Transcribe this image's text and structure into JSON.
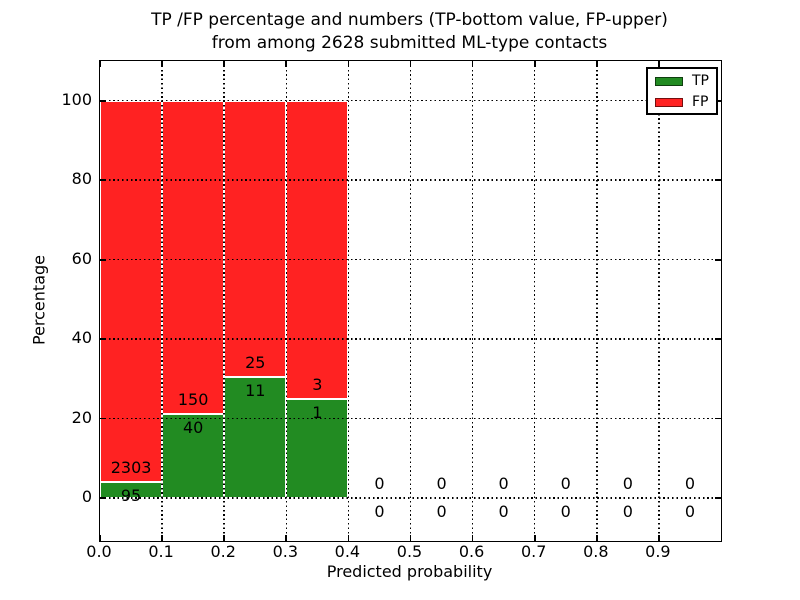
{
  "title": {
    "line1": "TP /FP percentage and numbers (TP-bottom value, FP-upper)",
    "line2": "from among 2628 submitted ML-type contacts"
  },
  "axes": {
    "xlabel": "Predicted probability",
    "ylabel": "Percentage",
    "x_tick_values": [
      0.0,
      0.1,
      0.2,
      0.3,
      0.4,
      0.5,
      0.6,
      0.7,
      0.8,
      0.9
    ],
    "x_tick_labels": [
      "0.0",
      "0.1",
      "0.2",
      "0.3",
      "0.4",
      "0.5",
      "0.6",
      "0.7",
      "0.8",
      "0.9"
    ],
    "y_tick_values": [
      0,
      20,
      40,
      60,
      80,
      100
    ],
    "y_tick_labels": [
      "0",
      "20",
      "40",
      "60",
      "80",
      "100"
    ]
  },
  "legend": {
    "items": [
      {
        "label": "TP",
        "color": "#228b22"
      },
      {
        "label": "FP",
        "color": "#ff2222"
      }
    ]
  },
  "chart_data": {
    "type": "bar",
    "stacked": true,
    "normalized": "each non-empty bin stacks to 100%",
    "title": "TP /FP percentage and numbers (TP-bottom value, FP-upper) from among 2628 submitted ML-type contacts",
    "xlabel": "Predicted probability",
    "ylabel": "Percentage",
    "total_contacts": 2628,
    "bin_width": 0.1,
    "bin_starts": [
      0.0,
      0.1,
      0.2,
      0.3,
      0.4,
      0.5,
      0.6,
      0.7,
      0.8,
      0.9
    ],
    "series": [
      {
        "name": "TP",
        "color": "#228b22",
        "counts": [
          95,
          40,
          11,
          1,
          0,
          0,
          0,
          0,
          0,
          0
        ],
        "pct_of_bin": [
          3.96,
          21.05,
          30.56,
          25.0,
          0,
          0,
          0,
          0,
          0,
          0
        ]
      },
      {
        "name": "FP",
        "color": "#ff2222",
        "counts": [
          2303,
          150,
          25,
          3,
          0,
          0,
          0,
          0,
          0,
          0
        ],
        "pct_of_bin": [
          96.04,
          78.95,
          69.44,
          75.0,
          0,
          0,
          0,
          0,
          0,
          0
        ]
      }
    ],
    "xlim": [
      0.0,
      1.0
    ],
    "ylim": [
      0,
      100
    ],
    "y_ticks": [
      0,
      20,
      40,
      60,
      80,
      100
    ],
    "grid": "dotted black, drawn over bars",
    "legend_position": "upper right",
    "bar_edge_color": "#ffffff"
  }
}
